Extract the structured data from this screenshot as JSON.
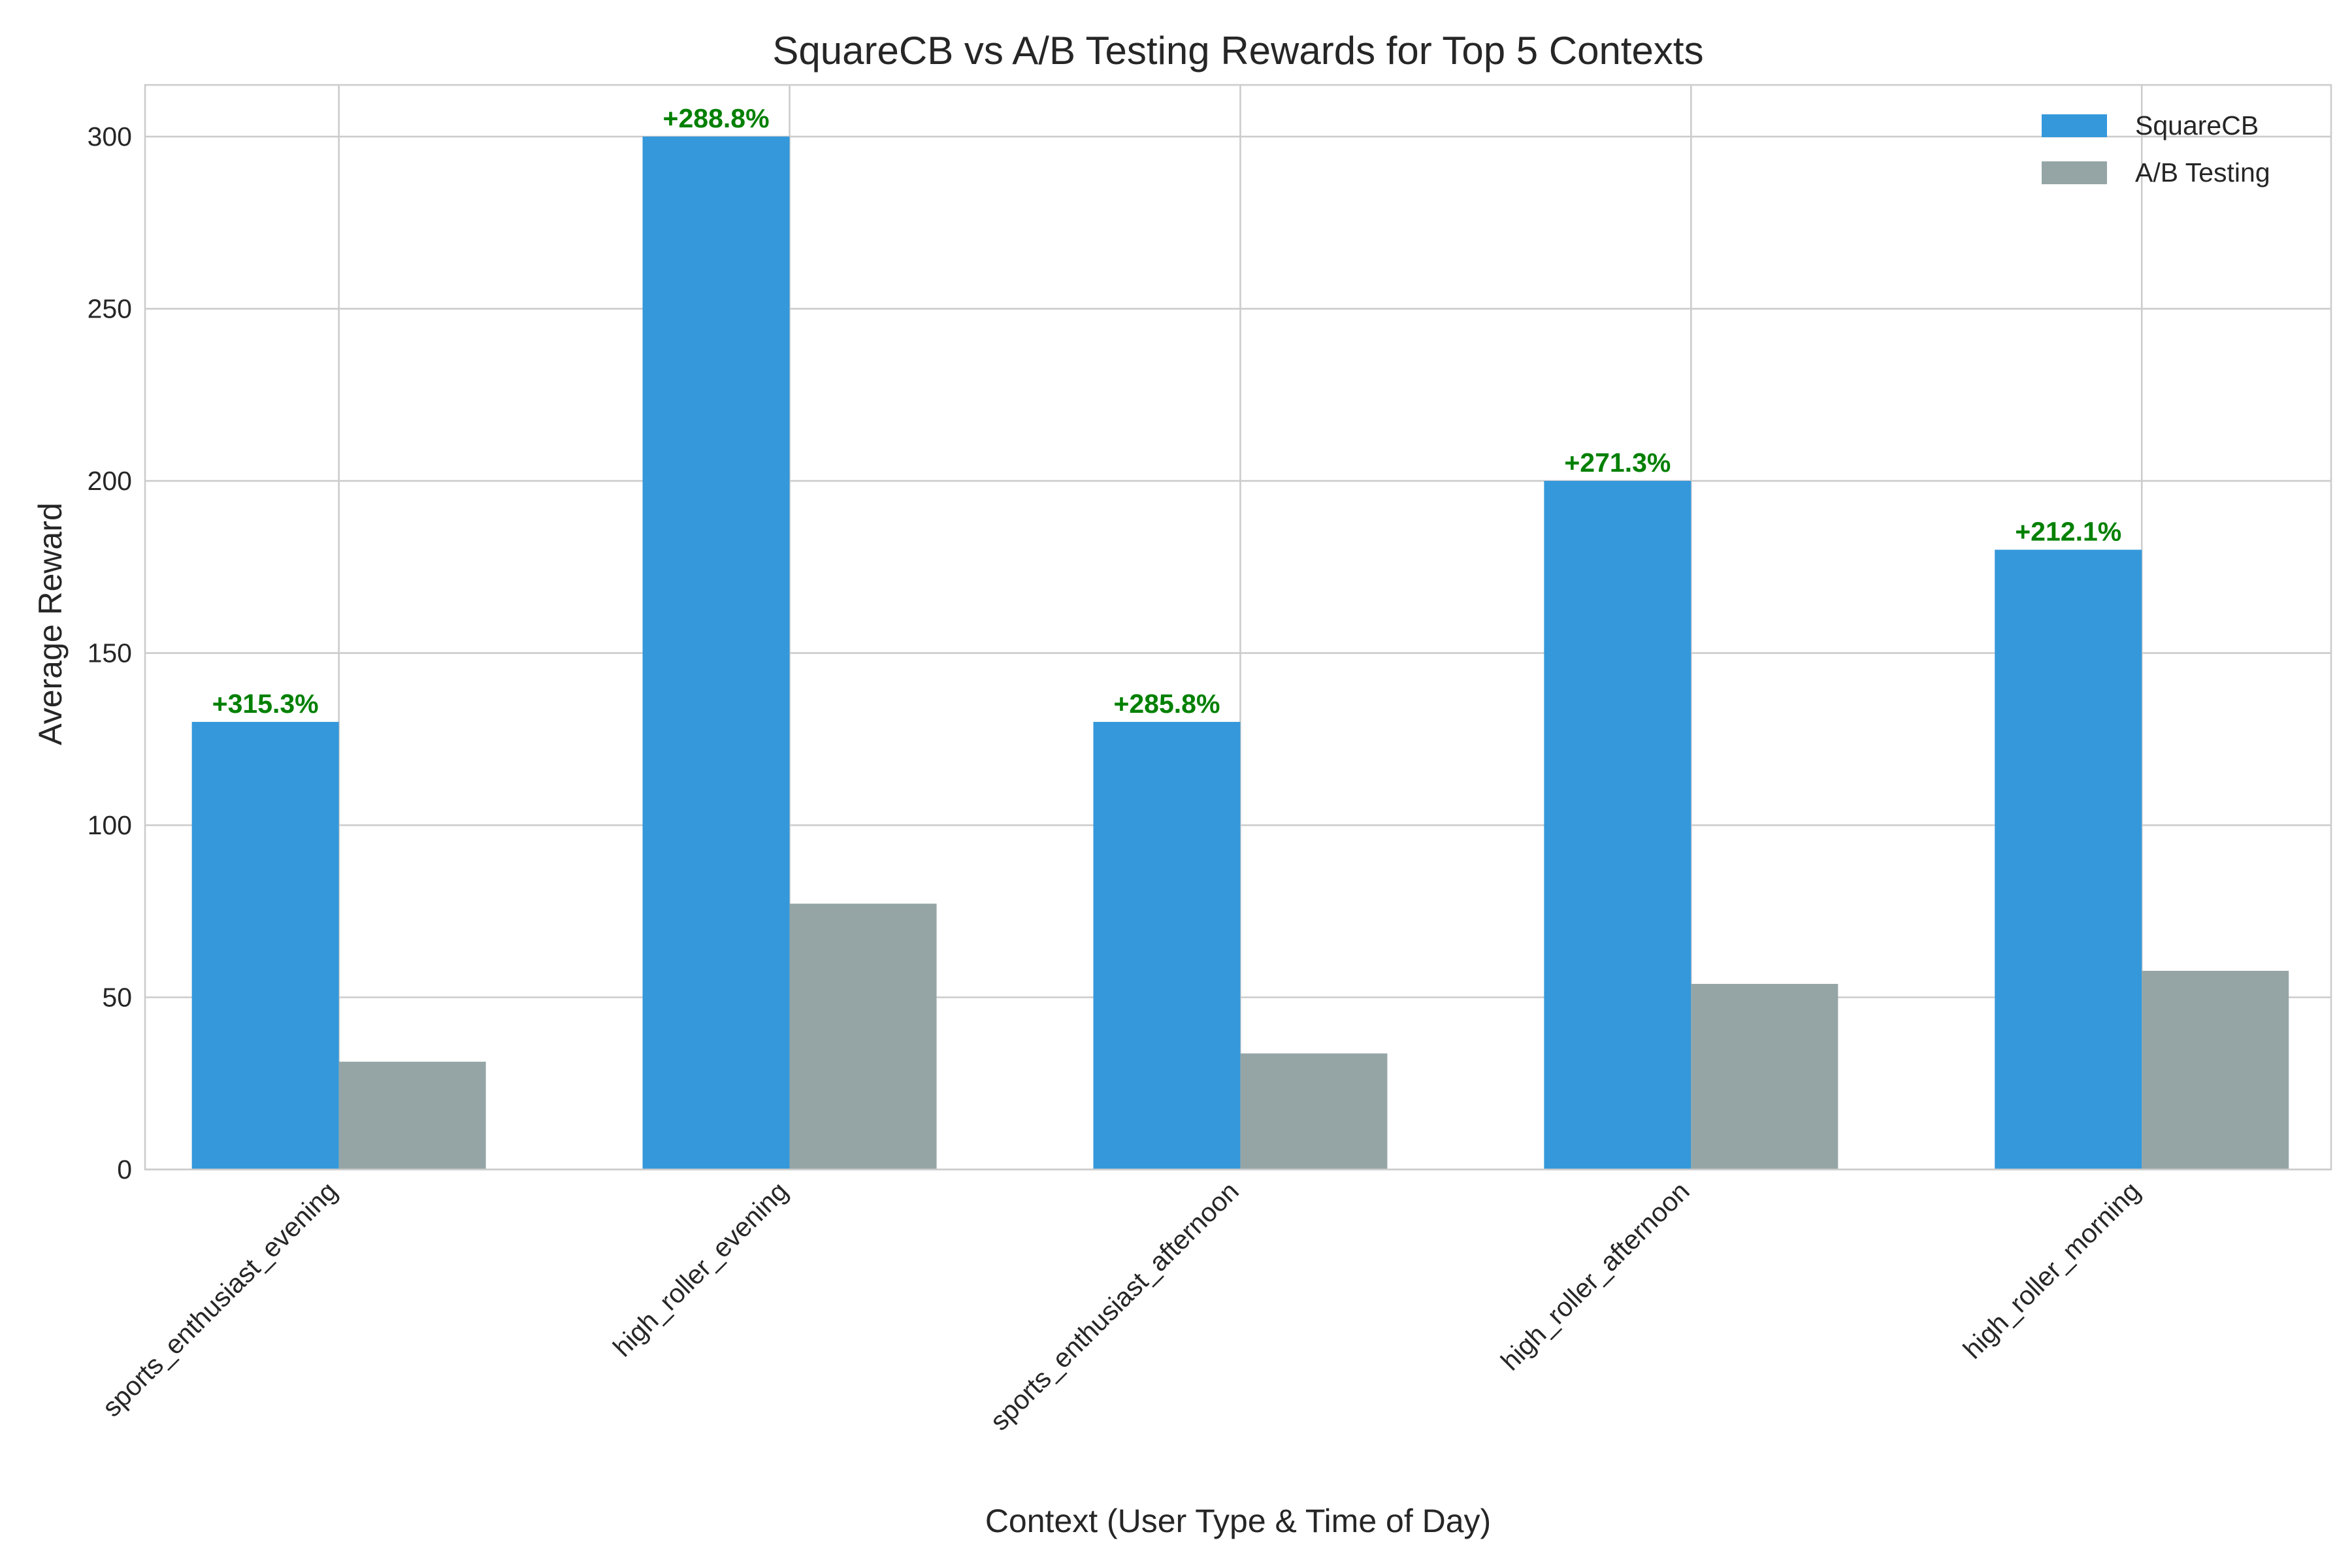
{
  "chart_data": {
    "type": "bar",
    "title": "SquareCB vs A/B Testing Rewards for Top 5 Contexts",
    "xlabel": "Context (User Type & Time of Day)",
    "ylabel": "Average Reward",
    "categories": [
      "sports_enthusiast_evening",
      "high_roller_evening",
      "sports_enthusiast_afternoon",
      "high_roller_afternoon",
      "high_roller_morning"
    ],
    "series": [
      {
        "name": "SquareCB",
        "color": "#3498db",
        "values": [
          130,
          300,
          130,
          200,
          180
        ]
      },
      {
        "name": "A/B Testing",
        "color": "#95a5a6",
        "values": [
          31.3,
          77.2,
          33.7,
          53.9,
          57.7
        ]
      }
    ],
    "annotations": [
      "+315.3%",
      "+288.8%",
      "+285.8%",
      "+271.3%",
      "+212.1%"
    ],
    "annotation_color": "#008000",
    "ylim": [
      0,
      315
    ],
    "yticks": [
      0,
      50,
      100,
      150,
      200,
      250,
      300
    ],
    "grid": true,
    "legend_position": "top-right"
  }
}
